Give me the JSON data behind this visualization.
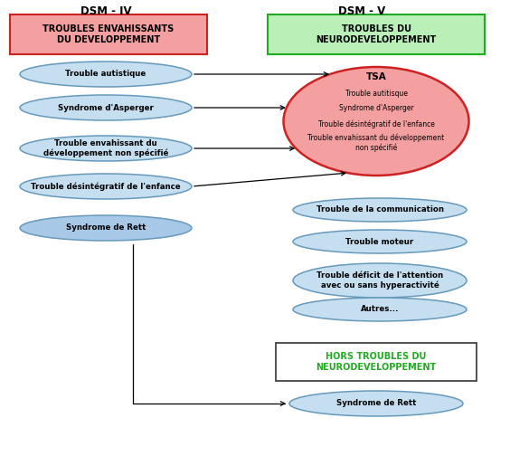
{
  "title_left": "DSM - IV",
  "title_right": "DSM - V",
  "box_left_text": "TROUBLES ENVAHISSANTS\nDU DEVELOPPEMENT",
  "box_left_facecolor": "#f5a0a0",
  "box_left_edgecolor": "#cc2222",
  "box_right_text": "TROUBLES DU\nNEURODEVELOPPEMENT",
  "box_right_facecolor": "#b8f0b8",
  "box_right_edgecolor": "#22aa22",
  "tsa_facecolor": "#f5a0a0",
  "tsa_edgecolor": "#cc2222",
  "tsa_title": "TSA",
  "tsa_items": [
    "Trouble autitisque",
    "Syndrome d'Asperger",
    "Trouble désintégratif de l'enfance",
    "Trouble envahissant du développement\nnon spécifié"
  ],
  "left_ellipses": [
    "Trouble autistique",
    "Syndrome d'Asperger",
    "Trouble envahissant du\ndéveloppement non spécifié",
    "Trouble désintégratif de l'enfance",
    "Syndrome de Rett"
  ],
  "left_ellipse_facecolor": "#c5dff0",
  "left_ellipse_edgecolor": "#6699bb",
  "rett_left_facecolor": "#a8c8e8",
  "rett_left_edgecolor": "#6699bb",
  "right_ellipses": [
    "Trouble de la communication",
    "Trouble moteur",
    "Trouble déficit de l'attention\navec ou sans hyperactivité",
    "Autres..."
  ],
  "right_ellipse_facecolor": "#c5dff0",
  "right_ellipse_edgecolor": "#6699bb",
  "hors_box_text": "HORS TROUBLES DU\nNEURODEVELOPPEMENT",
  "hors_box_facecolor": "#ffffff",
  "hors_box_edgecolor": "#333333",
  "hors_box_text_color": "#22aa22",
  "rett_right_text": "Syndrome de Rett",
  "rett_right_facecolor": "#c5dff0",
  "rett_right_edgecolor": "#6699bb",
  "background_color": "#ffffff"
}
